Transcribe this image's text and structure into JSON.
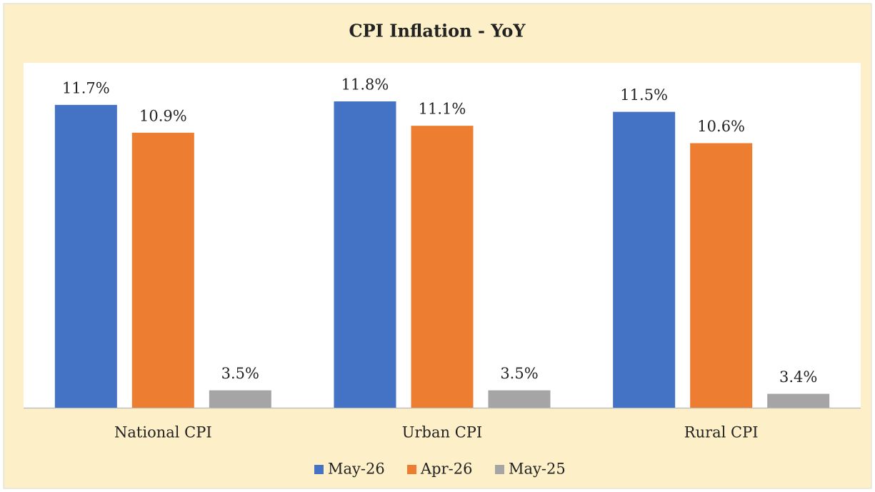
{
  "chart_data": {
    "type": "bar",
    "title": "CPI Inflation - YoY",
    "categories": [
      "National CPI",
      "Urban CPI",
      "Rural CPI"
    ],
    "series": [
      {
        "name": "May-26",
        "color": "#4472c4",
        "values": [
          11.7,
          11.8,
          11.5
        ],
        "value_labels": [
          "11.7%",
          "11.8%",
          "11.5%"
        ]
      },
      {
        "name": "Apr-26",
        "color": "#ed7d31",
        "values": [
          10.9,
          11.1,
          10.6
        ],
        "value_labels": [
          "10.9%",
          "11.1%",
          "10.6%"
        ]
      },
      {
        "name": "May-25",
        "color": "#a5a5a5",
        "values": [
          3.5,
          3.5,
          3.4
        ],
        "value_labels": [
          "3.5%",
          "3.5%",
          "3.4%"
        ]
      }
    ],
    "ylim": [
      3,
      13
    ],
    "legend": "bottom"
  }
}
